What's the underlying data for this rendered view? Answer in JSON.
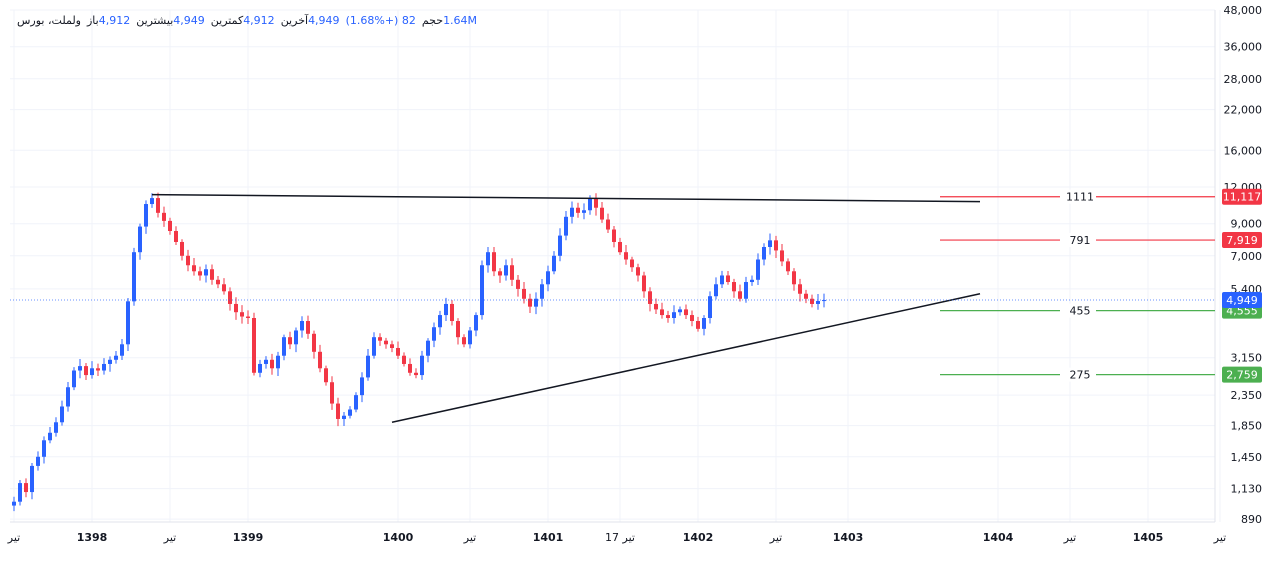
{
  "legend": {
    "symbol": "ولملت، بورس",
    "open_label": "باز",
    "open_value": "4,912",
    "high_label": "بیشترین",
    "high_value": "4,949",
    "low_label": "کمترین",
    "low_value": "4,912",
    "close_label": "آخرین",
    "close_value": "4,949",
    "change": "82 (+1.68%)",
    "volume_label": "حجم",
    "volume_value": "1.64M"
  },
  "colors": {
    "up": "#2962ff",
    "down": "#f23645",
    "grid": "#f0f3fa",
    "trendline": "#131722",
    "resistance": "#f23645",
    "support": "#4caf50",
    "last_price": "#2962ff"
  },
  "chart_data": {
    "type": "candlestick",
    "scale": "log",
    "ylim": [
      870,
      48000
    ],
    "y_ticks": [
      {
        "value": 48000,
        "label": "48,000"
      },
      {
        "value": 36000,
        "label": "36,000"
      },
      {
        "value": 28000,
        "label": "28,000"
      },
      {
        "value": 22000,
        "label": "22,000"
      },
      {
        "value": 16000,
        "label": "16,000"
      },
      {
        "value": 12000,
        "label": "12,000"
      },
      {
        "value": 9000,
        "label": "9,000"
      },
      {
        "value": 7000,
        "label": "7,000"
      },
      {
        "value": 5400,
        "label": "5,400"
      },
      {
        "value": 3150,
        "label": "3,150"
      },
      {
        "value": 2350,
        "label": "2,350"
      },
      {
        "value": 1850,
        "label": "1,850"
      },
      {
        "value": 1450,
        "label": "1,450"
      },
      {
        "value": 1130,
        "label": "1,130"
      },
      {
        "value": 890,
        "label": "890"
      }
    ],
    "x_ticks": [
      {
        "label": "تیر",
        "bold": false,
        "idx": 0
      },
      {
        "label": "1398",
        "bold": true,
        "idx": 13
      },
      {
        "label": "تیر",
        "bold": false,
        "idx": 26
      },
      {
        "label": "1399",
        "bold": true,
        "idx": 39
      },
      {
        "label": "1400",
        "bold": true,
        "idx": 64
      },
      {
        "label": "تیر",
        "bold": false,
        "idx": 76
      },
      {
        "label": "1401",
        "bold": true,
        "idx": 89
      },
      {
        "label": "17 تیر",
        "bold": false,
        "idx": 101
      },
      {
        "label": "1402",
        "bold": true,
        "idx": 114
      },
      {
        "label": "تیر",
        "bold": false,
        "idx": 127
      },
      {
        "label": "1403",
        "bold": true,
        "idx": 139
      },
      {
        "label": "1404",
        "bold": true,
        "idx": 164
      },
      {
        "label": "تیر",
        "bold": false,
        "idx": 176
      },
      {
        "label": "1405",
        "bold": true,
        "idx": 189
      },
      {
        "label": "تیر",
        "bold": false,
        "idx": 201
      }
    ],
    "closes": [
      1020,
      1180,
      1100,
      1350,
      1450,
      1650,
      1750,
      1900,
      2150,
      2500,
      2850,
      2950,
      2750,
      2900,
      2850,
      3000,
      3100,
      3200,
      3500,
      4900,
      7200,
      8800,
      10500,
      11000,
      9800,
      9200,
      8500,
      7800,
      7000,
      6500,
      6200,
      6000,
      6300,
      5800,
      5600,
      5300,
      4800,
      4500,
      4350,
      4300,
      2800,
      3000,
      3100,
      2900,
      3200,
      3700,
      3500,
      3900,
      4200,
      3800,
      3300,
      2900,
      2600,
      2200,
      1950,
      2000,
      2100,
      2350,
      2700,
      3200,
      3700,
      3600,
      3500,
      3400,
      3200,
      3000,
      2800,
      2750,
      3200,
      3600,
      4000,
      4400,
      4800,
      4200,
      3700,
      3500,
      3900,
      4400,
      6500,
      7200,
      6200,
      6000,
      6500,
      5800,
      5400,
      5000,
      4700,
      5000,
      5600,
      6200,
      7000,
      8200,
      9500,
      10200,
      9800,
      10000,
      11000,
      10200,
      9300,
      8600,
      7800,
      7200,
      6800,
      6400,
      6000,
      5300,
      4800,
      4600,
      4400,
      4300,
      4500,
      4600,
      4400,
      4200,
      3950,
      4300,
      5100,
      5600,
      6000,
      5700,
      5300,
      5000,
      5700,
      5800,
      6800,
      7500,
      7900,
      7300,
      6700,
      6200,
      5600,
      5200,
      5000,
      4800,
      4912,
      4949
    ],
    "annotations": [
      {
        "label": "1111",
        "value": 11117,
        "badge": "11,117",
        "kind": "resistance"
      },
      {
        "label": "791",
        "value": 7919,
        "badge": "7,919",
        "kind": "resistance"
      },
      {
        "label": "455",
        "value": 4555,
        "badge": "4,555",
        "kind": "support"
      },
      {
        "label": "275",
        "value": 2759,
        "badge": "2,759",
        "kind": "support"
      }
    ],
    "last_price": {
      "value": 4949,
      "badge": "4,949"
    },
    "trendlines": [
      {
        "from": [
          23,
          11300
        ],
        "to": [
          161,
          10700
        ]
      },
      {
        "from": [
          63,
          1900
        ],
        "to": [
          161,
          5200
        ]
      }
    ]
  }
}
